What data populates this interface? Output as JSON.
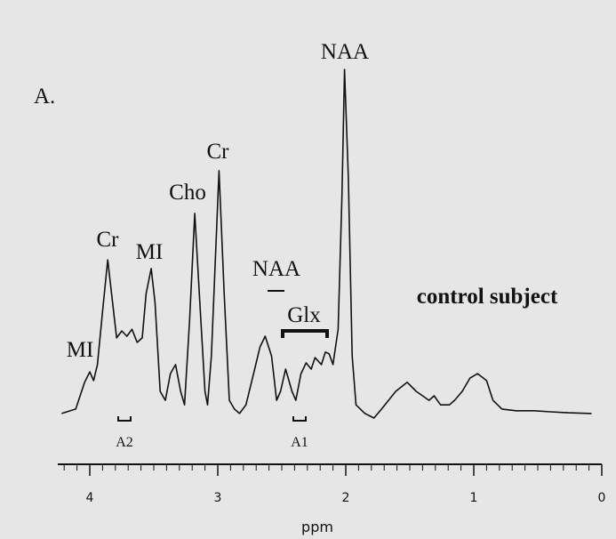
{
  "chart_data": {
    "type": "line",
    "title": "A.",
    "xlabel": "ppm",
    "xlim": [
      4.25,
      0
    ],
    "ylim": [
      0,
      100
    ],
    "xticks": [
      4,
      3,
      2,
      1,
      0
    ],
    "xticks_minor": [
      4.2,
      4.1,
      3.9,
      3.8,
      3.7,
      3.6,
      3.5,
      3.4,
      3.3,
      3.2,
      3.1,
      2.9,
      2.8,
      2.7,
      2.6,
      2.5,
      2.4,
      2.3,
      2.2,
      2.1,
      1.9,
      1.8,
      1.7,
      1.6,
      1.5,
      1.4,
      1.3,
      1.2,
      1.1,
      0.9,
      0.8,
      0.7,
      0.6,
      0.5,
      0.4,
      0.3,
      0.2,
      0.1
    ],
    "color": "#111111",
    "annotations": [
      "NAA",
      "Cr",
      "Cho",
      "Cr",
      "MI",
      "MI",
      "NAA",
      "Glx",
      "control subject",
      "A2",
      "A1"
    ],
    "x": [
      4.22,
      4.11,
      4.04,
      4.0,
      3.97,
      3.94,
      3.9,
      3.86,
      3.83,
      3.79,
      3.75,
      3.71,
      3.67,
      3.63,
      3.59,
      3.56,
      3.52,
      3.49,
      3.45,
      3.41,
      3.37,
      3.33,
      3.29,
      3.26,
      3.22,
      3.18,
      3.14,
      3.1,
      3.08,
      3.05,
      2.99,
      2.95,
      2.91,
      2.87,
      2.83,
      2.78,
      2.72,
      2.67,
      2.63,
      2.58,
      2.54,
      2.51,
      2.47,
      2.42,
      2.39,
      2.35,
      2.31,
      2.27,
      2.24,
      2.19,
      2.16,
      2.13,
      2.1,
      2.06,
      2.03,
      2.01,
      1.98,
      1.95,
      1.92,
      1.85,
      1.78,
      1.72,
      1.61,
      1.52,
      1.45,
      1.4,
      1.35,
      1.31,
      1.26,
      1.19,
      1.15,
      1.09,
      1.03,
      0.97,
      0.9,
      0.85,
      0.78,
      0.67,
      0.53,
      0.4,
      0.26,
      0.08
    ],
    "values": [
      1.3,
      2.6,
      10.3,
      13.3,
      10.8,
      15.4,
      30.8,
      45.6,
      35.9,
      23.1,
      25.1,
      23.6,
      25.6,
      21.8,
      23.1,
      35.9,
      43.1,
      33.3,
      7.7,
      5.1,
      12.8,
      15.4,
      7.7,
      3.8,
      28.2,
      59.0,
      33.3,
      7.7,
      3.8,
      17.9,
      71.3,
      35.9,
      5.1,
      2.6,
      1.3,
      3.8,
      12.8,
      20.5,
      23.6,
      17.9,
      5.1,
      7.7,
      14.1,
      7.7,
      5.1,
      12.8,
      15.9,
      14.1,
      17.4,
      15.4,
      19.0,
      18.5,
      15.4,
      25.6,
      64.1,
      100.5,
      69.2,
      17.9,
      3.8,
      1.3,
      0,
      2.6,
      7.7,
      10.3,
      7.7,
      6.4,
      5.1,
      6.4,
      3.8,
      3.8,
      5.1,
      7.7,
      11.5,
      12.8,
      10.8,
      5.1,
      2.6,
      2.1,
      2.1,
      1.8,
      1.5,
      1.3
    ]
  }
}
